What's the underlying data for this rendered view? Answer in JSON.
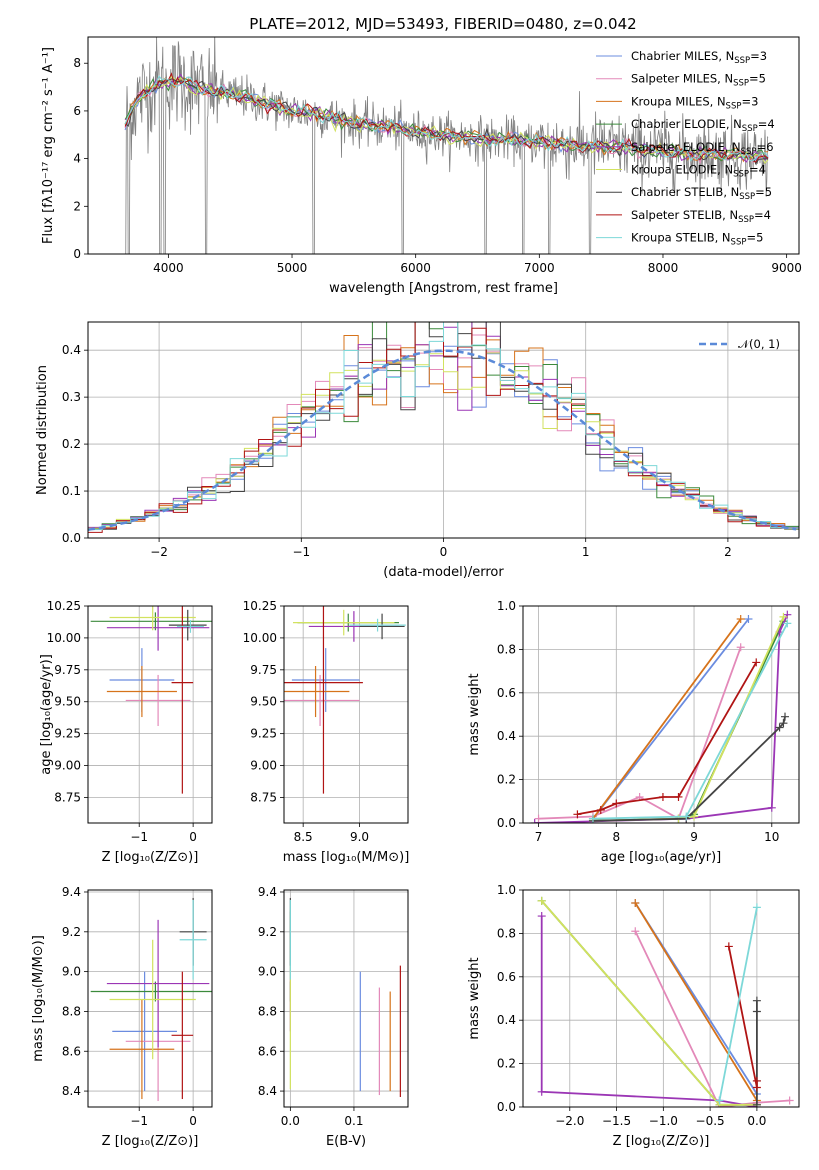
{
  "figure": {
    "title": "PLATE=2012, MJD=53493, FIBERID=0480, z=0.042"
  },
  "models": [
    {
      "name": "Chabrier MILES, N$_{SSP}$=3",
      "label_main": "Chabrier MILES, N",
      "label_sub": "SSP",
      "label_end": "=3",
      "color": "#6b8cdf"
    },
    {
      "name": "Salpeter MILES, N$_{SSP}$=5",
      "label_main": "Salpeter MILES, N",
      "label_sub": "SSP",
      "label_end": "=5",
      "color": "#e389b9"
    },
    {
      "name": "Kroupa MILES, N$_{SSP}$=3",
      "label_main": "Kroupa MILES, N",
      "label_sub": "SSP",
      "label_end": "=3",
      "color": "#d6731b"
    },
    {
      "name": "Chabrier ELODIE, N$_{SSP}$=4",
      "label_main": "Chabrier ELODIE, N",
      "label_sub": "SSP",
      "label_end": "=4",
      "color": "#3b8a3b"
    },
    {
      "name": "Salpeter ELODIE, N$_{SSP}$=6",
      "label_main": "Salpeter ELODIE, N",
      "label_sub": "SSP",
      "label_end": "=6",
      "color": "#9b36b5"
    },
    {
      "name": "Kroupa ELODIE, N$_{SSP}$=4",
      "label_main": "Kroupa ELODIE, N",
      "label_sub": "SSP",
      "label_end": "=4",
      "color": "#d2e25f"
    },
    {
      "name": "Chabrier STELIB, N$_{SSP}$=5",
      "label_main": "Chabrier STELIB, N",
      "label_sub": "SSP",
      "label_end": "=5",
      "color": "#444444"
    },
    {
      "name": "Salpeter STELIB, N$_{SSP}$=4",
      "label_main": "Salpeter STELIB, N",
      "label_sub": "SSP",
      "label_end": "=4",
      "color": "#b01414"
    },
    {
      "name": "Kroupa STELIB, N$_{SSP}$=5",
      "label_main": "Kroupa STELIB, N",
      "label_sub": "SSP",
      "label_end": "=5",
      "color": "#7dd8d8"
    }
  ],
  "chart_data": [
    {
      "id": "spectrum",
      "type": "line",
      "title": "PLATE=2012, MJD=53493, FIBERID=0480, z=0.042",
      "xlabel": "wavelength [Angstrom, rest frame]",
      "ylabel": "Flux [fλ10⁻¹⁷ erg cm⁻² s⁻¹ A⁻¹]",
      "xlim": [
        3350,
        9100
      ],
      "ylim": [
        0,
        9.1
      ],
      "xticks": [
        4000,
        5000,
        6000,
        7000,
        8000,
        9000
      ],
      "yticks": [
        0,
        2,
        4,
        6,
        8
      ],
      "grid": false,
      "legend": "top-right",
      "data_color": "#808080",
      "continuum_points": [
        [
          3650,
          5.5
        ],
        [
          3750,
          6.5
        ],
        [
          3900,
          7.1
        ],
        [
          4000,
          7.2
        ],
        [
          4100,
          7.3
        ],
        [
          4200,
          7.0
        ],
        [
          4400,
          6.8
        ],
        [
          4600,
          6.6
        ],
        [
          4800,
          6.3
        ],
        [
          5000,
          6.0
        ],
        [
          5200,
          5.9
        ],
        [
          5400,
          5.6
        ],
        [
          5600,
          5.4
        ],
        [
          5800,
          5.3
        ],
        [
          6000,
          5.1
        ],
        [
          6200,
          5.0
        ],
        [
          6400,
          4.9
        ],
        [
          6600,
          4.8
        ],
        [
          6800,
          4.8
        ],
        [
          7000,
          4.7
        ],
        [
          7200,
          4.6
        ],
        [
          7400,
          4.5
        ],
        [
          7600,
          4.5
        ],
        [
          7800,
          4.4
        ],
        [
          8000,
          4.3
        ],
        [
          8200,
          4.2
        ],
        [
          8400,
          4.2
        ],
        [
          8600,
          4.15
        ],
        [
          8800,
          4.1
        ]
      ]
    },
    {
      "id": "residuals",
      "type": "histogram",
      "xlabel": "(data-model)/error",
      "ylabel": "Normed distribution",
      "xlim": [
        -2.5,
        2.5
      ],
      "ylim": [
        0,
        0.46
      ],
      "xticks": [
        -2,
        -1,
        0,
        1,
        2
      ],
      "yticks": [
        0.0,
        0.1,
        0.2,
        0.3,
        0.4
      ],
      "grid": true,
      "legend": "top-right",
      "reference_curve": {
        "name": "N(0,1)",
        "label": "𝒩(0, 1)",
        "color": "#5b8ad8",
        "mean": 0,
        "sigma": 1
      }
    },
    {
      "id": "age_vs_Z",
      "type": "errorbar",
      "xlabel": "Z [log₁₀(Z/Z⊙)]",
      "ylabel": "age  [log₁₀(age/yr)]",
      "xlim": [
        -1.95,
        0.35
      ],
      "ylim": [
        8.55,
        10.25
      ],
      "xticks": [
        -1,
        0
      ],
      "yticks": [
        8.75,
        9.0,
        9.25,
        9.5,
        9.75,
        10.0,
        10.25
      ],
      "grid": true,
      "points": [
        {
          "model": 0,
          "x": -0.95,
          "xerr": 0.6,
          "y": 9.67,
          "yerr": 0.25
        },
        {
          "model": 1,
          "x": -0.65,
          "xerr": 0.6,
          "y": 9.51,
          "yerr": 0.2
        },
        {
          "model": 2,
          "x": -0.95,
          "xerr": 0.65,
          "y": 9.58,
          "yerr": 0.2
        },
        {
          "model": 3,
          "x": -0.7,
          "xerr": 1.2,
          "y": 10.13,
          "yerr": 0.07
        },
        {
          "model": 4,
          "x": -0.65,
          "xerr": 0.95,
          "y": 10.08,
          "yerr": 0.18
        },
        {
          "model": 5,
          "x": -0.75,
          "xerr": 0.8,
          "y": 10.16,
          "yerr": 0.1
        },
        {
          "model": 6,
          "x": -0.1,
          "xerr": 0.35,
          "y": 10.1,
          "yerr": 0.12
        },
        {
          "model": 7,
          "x": -0.2,
          "xerr": 0.2,
          "y": 9.65,
          "yerr": 0.87
        },
        {
          "model": 8,
          "x": -0.05,
          "xerr": 0.25,
          "y": 10.09,
          "yerr": 0.05
        }
      ]
    },
    {
      "id": "age_vs_mass",
      "type": "errorbar",
      "xlabel": "mass [log₁₀(M/M⊙)]",
      "ylabel": "",
      "xlim": [
        8.33,
        9.43
      ],
      "ylim": [
        8.55,
        10.25
      ],
      "xticks": [
        8.5,
        9.0
      ],
      "yticks": [
        8.75,
        9.0,
        9.25,
        9.5,
        9.75,
        10.0,
        10.25
      ],
      "grid": true,
      "points": [
        {
          "model": 0,
          "x": 8.7,
          "xerr": 0.3,
          "y": 9.67,
          "yerr": 0.25
        },
        {
          "model": 1,
          "x": 8.65,
          "xerr": 0.35,
          "y": 9.51,
          "yerr": 0.2
        },
        {
          "model": 2,
          "x": 8.61,
          "xerr": 0.3,
          "y": 9.58,
          "yerr": 0.2
        },
        {
          "model": 3,
          "x": 8.9,
          "xerr": 0.45,
          "y": 10.12,
          "yerr": 0.07
        },
        {
          "model": 4,
          "x": 8.95,
          "xerr": 0.4,
          "y": 10.09,
          "yerr": 0.12
        },
        {
          "model": 5,
          "x": 8.86,
          "xerr": 0.45,
          "y": 10.12,
          "yerr": 0.1
        },
        {
          "model": 6,
          "x": 9.2,
          "xerr": 0.2,
          "y": 10.09,
          "yerr": 0.1
        },
        {
          "model": 7,
          "x": 8.68,
          "xerr": 0.35,
          "y": 9.65,
          "yerr": 0.87
        },
        {
          "model": 8,
          "x": 9.16,
          "xerr": 0.25,
          "y": 10.1,
          "yerr": 0.05
        }
      ]
    },
    {
      "id": "weight_vs_age",
      "type": "line",
      "xlabel": "age  [log₁₀(age/yr)]",
      "ylabel": "mass weight",
      "xlim": [
        6.8,
        10.35
      ],
      "ylim": [
        0,
        1.0
      ],
      "xticks": [
        7,
        8,
        9,
        10
      ],
      "yticks": [
        0.0,
        0.2,
        0.4,
        0.6,
        0.8,
        1.0
      ],
      "grid": true,
      "series": [
        {
          "model": 0,
          "x": [
            7.7,
            9.7
          ],
          "y": [
            0.02,
            0.94
          ]
        },
        {
          "model": 1,
          "x": [
            7.0,
            7.7,
            8.3,
            8.8,
            9.6
          ],
          "y": [
            0.02,
            0.03,
            0.12,
            0.02,
            0.81
          ]
        },
        {
          "model": 2,
          "x": [
            7.7,
            9.6
          ],
          "y": [
            0.02,
            0.94
          ]
        },
        {
          "model": 3,
          "x": [
            7.7,
            8.8,
            9.0,
            10.15
          ],
          "y": [
            0.01,
            0.02,
            0.04,
            0.93
          ]
        },
        {
          "model": 4,
          "x": [
            6.95,
            8.9,
            10.0,
            10.1,
            10.2
          ],
          "y": [
            0.0,
            0.02,
            0.07,
            0.88,
            0.96
          ]
        },
        {
          "model": 5,
          "x": [
            7.7,
            8.8,
            9.0,
            10.15
          ],
          "y": [
            0.01,
            0.02,
            0.03,
            0.95
          ]
        },
        {
          "model": 6,
          "x": [
            7.7,
            8.9,
            10.1,
            10.15,
            10.17
          ],
          "y": [
            0.01,
            0.02,
            0.44,
            0.46,
            0.49
          ]
        },
        {
          "model": 7,
          "x": [
            7.5,
            7.8,
            8.0,
            8.6,
            8.8,
            9.8
          ],
          "y": [
            0.04,
            0.06,
            0.09,
            0.12,
            0.12,
            0.74
          ]
        },
        {
          "model": 8,
          "x": [
            7.7,
            8.9,
            10.2
          ],
          "y": [
            0.02,
            0.03,
            0.92
          ]
        }
      ]
    },
    {
      "id": "mass_vs_Z",
      "type": "errorbar",
      "xlabel": "Z [log₁₀(Z/Z⊙)]",
      "ylabel": "mass [log₁₀(M/M⊙)]",
      "xlim": [
        -1.95,
        0.35
      ],
      "ylim": [
        8.32,
        9.41
      ],
      "xticks": [
        -1,
        0
      ],
      "yticks": [
        8.4,
        8.6,
        8.8,
        9.0,
        9.2,
        9.4
      ],
      "grid": true,
      "points": [
        {
          "model": 0,
          "x": -0.9,
          "xerr": 0.6,
          "y": 8.7,
          "yerr": 0.3
        },
        {
          "model": 1,
          "x": -0.65,
          "xerr": 0.6,
          "y": 8.65,
          "yerr": 0.3
        },
        {
          "model": 2,
          "x": -0.95,
          "xerr": 0.6,
          "y": 8.61,
          "yerr": 0.25
        },
        {
          "model": 3,
          "x": -0.7,
          "xerr": 1.2,
          "y": 8.9,
          "yerr": 0.05
        },
        {
          "model": 4,
          "x": -0.65,
          "xerr": 0.95,
          "y": 8.94,
          "yerr": 0.32
        },
        {
          "model": 5,
          "x": -0.75,
          "xerr": 0.8,
          "y": 8.86,
          "yerr": 0.3
        },
        {
          "model": 6,
          "x": 0.0,
          "xerr": 0.25,
          "y": 9.2,
          "yerr": 0.17
        },
        {
          "model": 7,
          "x": -0.2,
          "xerr": 0.2,
          "y": 8.68,
          "yerr": 0.32
        },
        {
          "model": 8,
          "x": 0.0,
          "xerr": 0.25,
          "y": 9.16,
          "yerr": 0.2
        }
      ]
    },
    {
      "id": "mass_vs_EBV",
      "type": "errorbar",
      "xlabel": "E(B-V)",
      "ylabel": "",
      "xlim": [
        -0.01,
        0.185
      ],
      "ylim": [
        8.32,
        9.41
      ],
      "xticks": [
        0.0,
        0.1
      ],
      "yticks": [
        8.4,
        8.6,
        8.8,
        9.0,
        9.2,
        9.4
      ],
      "grid": true,
      "points": [
        {
          "model": 0,
          "x": 0.11,
          "xerr": 0,
          "y": 8.7,
          "yerr": 0.3
        },
        {
          "model": 1,
          "x": 0.14,
          "xerr": 0,
          "y": 8.65,
          "yerr": 0.27
        },
        {
          "model": 2,
          "x": 0.157,
          "xerr": 0,
          "y": 8.65,
          "yerr": 0.25
        },
        {
          "model": 3,
          "x": 0.0,
          "xerr": 0,
          "y": 8.9,
          "yerr": 0.05
        },
        {
          "model": 4,
          "x": 0.0,
          "xerr": 0,
          "y": 9.0,
          "yerr": 0.3
        },
        {
          "model": 5,
          "x": 0.0,
          "xerr": 0,
          "y": 8.86,
          "yerr": 0.45
        },
        {
          "model": 6,
          "x": 0.0,
          "xerr": 0,
          "y": 9.2,
          "yerr": 0.17
        },
        {
          "model": 7,
          "x": 0.173,
          "xerr": 0,
          "y": 8.7,
          "yerr": 0.33
        },
        {
          "model": 8,
          "x": 0.0,
          "xerr": 0,
          "y": 9.16,
          "yerr": 0.2
        }
      ]
    },
    {
      "id": "weight_vs_Z",
      "type": "line",
      "xlabel": "Z [log₁₀(Z/Z⊙)]",
      "ylabel": "mass weight",
      "xlim": [
        -2.5,
        0.45
      ],
      "ylim": [
        0,
        1.0
      ],
      "xticks": [
        -2.0,
        -1.5,
        -1.0,
        -0.5,
        0.0
      ],
      "yticks": [
        0.0,
        0.2,
        0.4,
        0.6,
        0.8,
        1.0
      ],
      "grid": true,
      "series": [
        {
          "model": 0,
          "x": [
            -1.3,
            0.0
          ],
          "y": [
            0.94,
            0.06
          ]
        },
        {
          "model": 1,
          "x": [
            -1.3,
            -0.4,
            0.0,
            0.35
          ],
          "y": [
            0.81,
            0.0,
            0.02,
            0.03
          ]
        },
        {
          "model": 2,
          "x": [
            -1.3,
            0.0
          ],
          "y": [
            0.94,
            0.03
          ]
        },
        {
          "model": 3,
          "x": [
            -2.3,
            -0.4,
            0.0
          ],
          "y": [
            0.95,
            0.01,
            0.01
          ]
        },
        {
          "model": 4,
          "x": [
            -2.3,
            -2.3,
            -0.4,
            0.0
          ],
          "y": [
            0.88,
            0.07,
            0.03,
            0.0
          ]
        },
        {
          "model": 5,
          "x": [
            -2.3,
            -0.4,
            0.0
          ],
          "y": [
            0.95,
            0.01,
            0.01
          ]
        },
        {
          "model": 6,
          "x": [
            0.0,
            0.0,
            0.0,
            0.0
          ],
          "y": [
            0.01,
            0.12,
            0.44,
            0.49
          ]
        },
        {
          "model": 7,
          "x": [
            -0.3,
            0.0,
            0.0
          ],
          "y": [
            0.74,
            0.09,
            0.12
          ]
        },
        {
          "model": 8,
          "x": [
            -0.4,
            0.0
          ],
          "y": [
            0.03,
            0.92
          ]
        }
      ]
    }
  ]
}
